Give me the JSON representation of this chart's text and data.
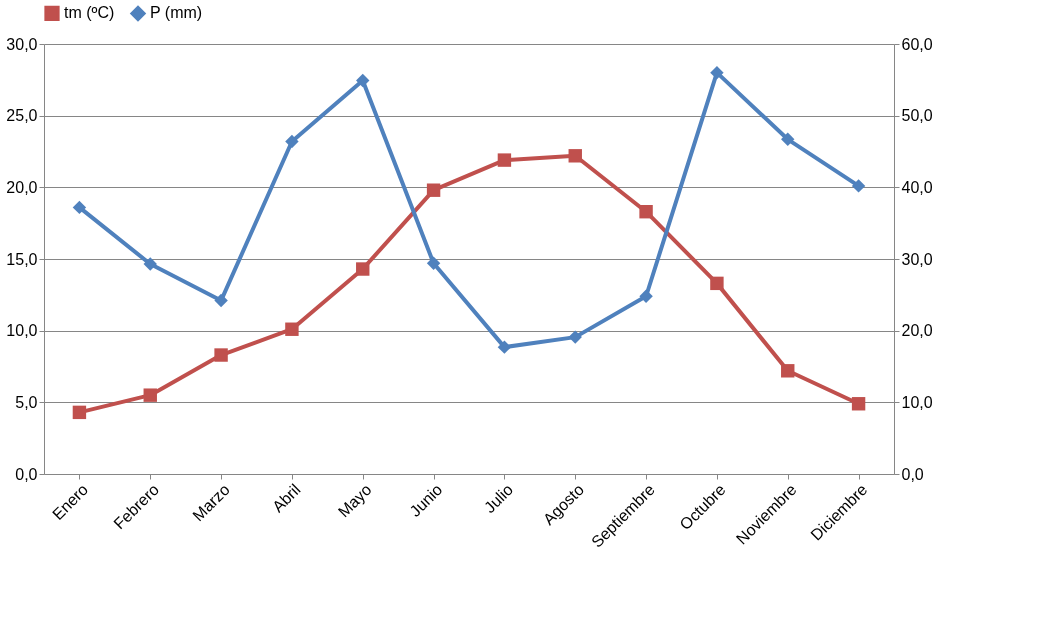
{
  "chart_data": {
    "type": "line",
    "categories": [
      "Enero",
      "Febrero",
      "Marzo",
      "Abril",
      "Mayo",
      "Junio",
      "Julio",
      "Agosto",
      "Septiembre",
      "Octubre",
      "Noviembre",
      "Diciembre"
    ],
    "series": [
      {
        "name": "tm (ºC)",
        "color": "#c0504d",
        "marker": "square",
        "values": [
          4.3,
          5.5,
          8.3,
          10.1,
          14.3,
          19.8,
          21.9,
          22.2,
          18.3,
          13.3,
          7.2,
          4.9
        ]
      },
      {
        "name": "P (mm)",
        "color": "#4f81bd",
        "marker": "diamond",
        "axis": "y2",
        "values": [
          37.2,
          29.3,
          24.2,
          46.4,
          54.9,
          29.4,
          17.7,
          19.1,
          24.8,
          56.0,
          46.7,
          40.2
        ]
      }
    ],
    "ylim": [
      0,
      30
    ],
    "yticks": [
      {
        "value": 0,
        "label": "0,0"
      },
      {
        "value": 5,
        "label": "5,0"
      },
      {
        "value": 10,
        "label": "10,0"
      },
      {
        "value": 15,
        "label": "15,0"
      },
      {
        "value": 20,
        "label": "20,0"
      },
      {
        "value": 25,
        "label": "25,0"
      },
      {
        "value": 30,
        "label": "30,0"
      }
    ],
    "y2lim": [
      0,
      60
    ],
    "y2ticks": [
      {
        "value": 0,
        "label": "0,0"
      },
      {
        "value": 10,
        "label": "10,0"
      },
      {
        "value": 20,
        "label": "20,0"
      },
      {
        "value": 30,
        "label": "30,0"
      },
      {
        "value": 40,
        "label": "40,0"
      },
      {
        "value": 50,
        "label": "50,0"
      },
      {
        "value": 60,
        "label": "60,0"
      }
    ],
    "grid": "y",
    "legend": "top",
    "line_style": "solid"
  }
}
